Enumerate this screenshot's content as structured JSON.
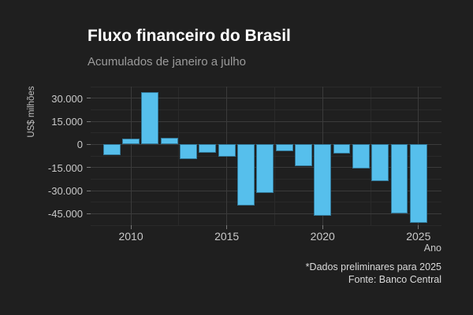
{
  "header": {
    "title": "Fluxo financeiro do Brasil",
    "subtitle": "Acumulados de janeiro a julho"
  },
  "chart_data": {
    "type": "bar",
    "title": "Fluxo financeiro do Brasil",
    "subtitle": "Acumulados de janeiro a julho",
    "xlabel": "Ano",
    "ylabel": "US$ milhões",
    "x": [
      2009,
      2010,
      2011,
      2012,
      2013,
      2014,
      2015,
      2016,
      2017,
      2018,
      2019,
      2020,
      2021,
      2022,
      2023,
      2024,
      2025
    ],
    "values": [
      -6800,
      4000,
      34100,
      4200,
      -9600,
      -5400,
      -8000,
      -39900,
      -31300,
      -4400,
      -14200,
      -46500,
      -5800,
      -15700,
      -23800,
      -44700,
      -50800
    ],
    "ylim": [
      -52500,
      37500
    ],
    "xlim": [
      2007.9,
      2026.2
    ],
    "yticks": [
      30000,
      15000,
      0,
      -15000,
      -30000,
      -45000
    ],
    "ytick_labels": [
      "30.000",
      "15.000",
      "0",
      "-15.000",
      "-30.000",
      "-45.000"
    ],
    "ygrid_minor": [
      37500,
      22500,
      7500,
      -7500,
      -22500,
      -37500,
      -52500
    ],
    "xticks": [
      2010,
      2015,
      2020,
      2025
    ],
    "xtick_labels": [
      "2010",
      "2015",
      "2020",
      "2025"
    ],
    "xgrid_minor": [
      2012.5,
      2017.5,
      2022.5
    ],
    "bar_color": "#56bfec",
    "grid": true,
    "legend": "none"
  },
  "caption": {
    "line1": "*Dados preliminares para 2025",
    "line2": "Fonte: Banco Central"
  },
  "colors": {
    "background": "#1f1f1f",
    "bar": "#56bfec",
    "grid_major": "#3b3b3b",
    "grid_minor": "#2a2a2a",
    "title": "#ffffff",
    "subtitle": "#9b9b9b",
    "tick_text": "#c9c9c9"
  }
}
